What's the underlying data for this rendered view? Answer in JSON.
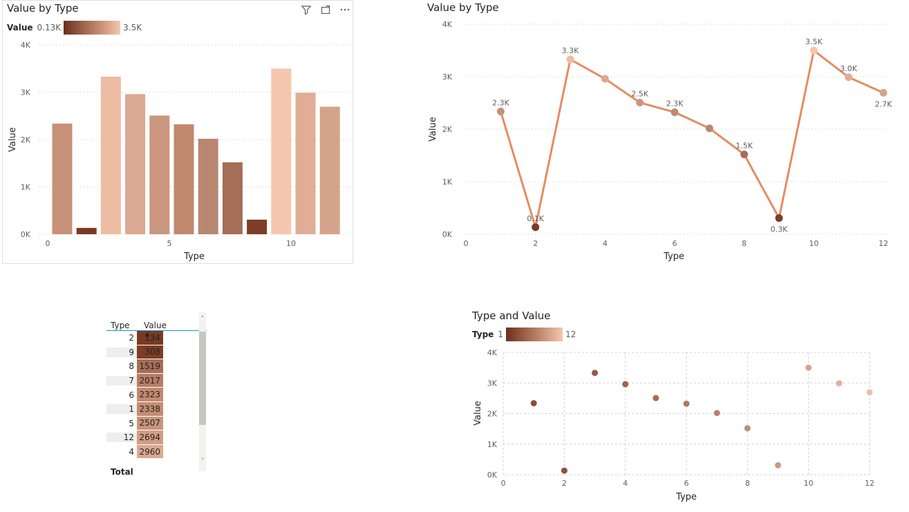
{
  "visuals": {
    "bar": {
      "title": "Value by Type",
      "legend": {
        "label": "Value",
        "min": "0.13K",
        "max": "3.5K"
      }
    },
    "line": {
      "title": "Value by Type"
    },
    "table": {
      "headers": [
        "Type",
        "Value"
      ],
      "rows": [
        {
          "type": "2",
          "value": "134",
          "color": "#7a3a22"
        },
        {
          "type": "9",
          "value": "308",
          "color": "#7d3d24"
        },
        {
          "type": "8",
          "value": "1519",
          "color": "#a56e56"
        },
        {
          "type": "7",
          "value": "2017",
          "color": "#b77d64"
        },
        {
          "type": "6",
          "value": "2323",
          "color": "#c18a71"
        },
        {
          "type": "1",
          "value": "2338",
          "color": "#c48d73"
        },
        {
          "type": "5",
          "value": "2507",
          "color": "#c9947a"
        },
        {
          "type": "12",
          "value": "2694",
          "color": "#d19d84"
        },
        {
          "type": "4",
          "value": "2960",
          "color": "#daa990"
        }
      ],
      "total_label": "Total"
    },
    "scatter": {
      "title": "Type and Value",
      "legend": {
        "label": "Type",
        "min": "1",
        "max": "12"
      }
    }
  },
  "chart_data": [
    {
      "type": "bar",
      "title": "Value by Type",
      "xlabel": "Type",
      "ylabel": "Value",
      "x": [
        1,
        2,
        3,
        4,
        5,
        6,
        7,
        8,
        9,
        10,
        11,
        12
      ],
      "values": [
        2338,
        134,
        3330,
        2960,
        2507,
        2323,
        2017,
        1519,
        308,
        3500,
        2990,
        2694
      ],
      "colors": [
        "#c7917a",
        "#7a3a22",
        "#eebca2",
        "#dba891",
        "#cb9680",
        "#c08970",
        "#b98770",
        "#a56e56",
        "#7d3d24",
        "#f4c7ae",
        "#e1ad96",
        "#d5a28a"
      ],
      "xlim": [
        0,
        12.5
      ],
      "ylim": [
        0,
        4000
      ],
      "xticks": [
        "0",
        "5",
        "10"
      ],
      "yticks": [
        "0K",
        "1K",
        "2K",
        "3K",
        "4K"
      ],
      "grid": true
    },
    {
      "type": "line",
      "title": "Value by Type",
      "xlabel": "Type",
      "ylabel": "Value",
      "x": [
        1,
        2,
        3,
        4,
        5,
        6,
        7,
        8,
        9,
        10,
        11,
        12
      ],
      "values": [
        2338,
        134,
        3330,
        2960,
        2507,
        2323,
        2017,
        1519,
        308,
        3500,
        2990,
        2694
      ],
      "data_labels": [
        "2.3K",
        "0.1K",
        "3.3K",
        "",
        "2.5K",
        "2.3K",
        "",
        "1.5K",
        "0.3K",
        "3.5K",
        "3.0K",
        "2.7K"
      ],
      "line_color": "#e58c62",
      "xlim": [
        0,
        12
      ],
      "ylim": [
        0,
        4000
      ],
      "xticks": [
        "0",
        "2",
        "4",
        "6",
        "8",
        "10",
        "12"
      ],
      "yticks": [
        "0K",
        "1K",
        "2K",
        "3K",
        "4K"
      ],
      "grid": true
    },
    {
      "type": "scatter",
      "title": "Type and Value",
      "xlabel": "Type",
      "ylabel": "Value",
      "x": [
        1,
        2,
        3,
        4,
        5,
        6,
        7,
        8,
        9,
        10,
        11,
        12
      ],
      "values": [
        2338,
        134,
        3330,
        2960,
        2507,
        2323,
        2017,
        1519,
        308,
        3500,
        2990,
        2694
      ],
      "colors": [
        "#8c4e36",
        "#8f523a",
        "#965a42",
        "#9e644b",
        "#a66d55",
        "#ae775f",
        "#b7826a",
        "#c08d76",
        "#c99882",
        "#d4a48f",
        "#e0b29d",
        "#ecc0ab"
      ],
      "xlim": [
        0,
        12
      ],
      "ylim": [
        0,
        4000
      ],
      "xticks": [
        "0",
        "2",
        "4",
        "6",
        "8",
        "10",
        "12"
      ],
      "yticks": [
        "0K",
        "1K",
        "2K",
        "3K",
        "4K"
      ],
      "grid": true
    }
  ]
}
